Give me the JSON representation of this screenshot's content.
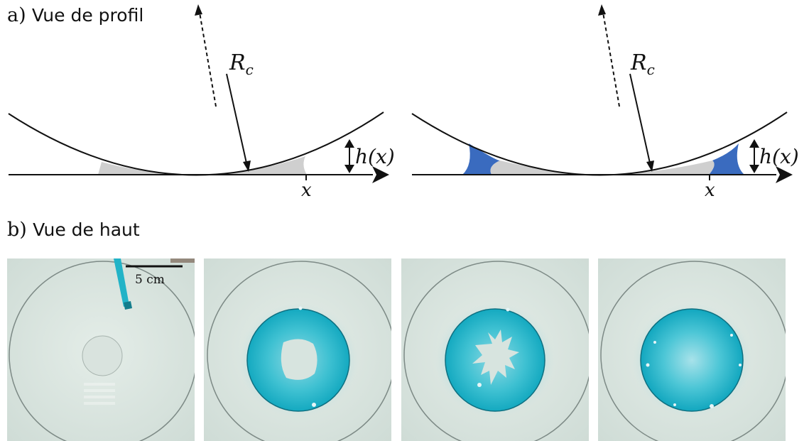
{
  "panel_a": {
    "letter": "a)",
    "title": "Vue de profil"
  },
  "panel_b": {
    "letter": "b)",
    "title": "Vue de haut"
  },
  "diagram_labels": {
    "radius_label": "R",
    "radius_subscript": "c",
    "height_label": "h(x)",
    "x_label": "x"
  },
  "scale_bar": {
    "label": "5 cm"
  },
  "colors": {
    "wetted_gray": "#cfcfcf",
    "meniscus_blue": "#3a6bbf",
    "dye_cyan": "#20b2c9",
    "plate_background": "#d7e5df",
    "line_black": "#111111"
  },
  "photos": [
    {
      "state": "dry",
      "has_scale_bar": true
    },
    {
      "state": "dyed-ring-with-central-dry-spot"
    },
    {
      "state": "dyed-ring-with-fingered-dry-spot"
    },
    {
      "state": "fully-dyed-disk"
    }
  ]
}
